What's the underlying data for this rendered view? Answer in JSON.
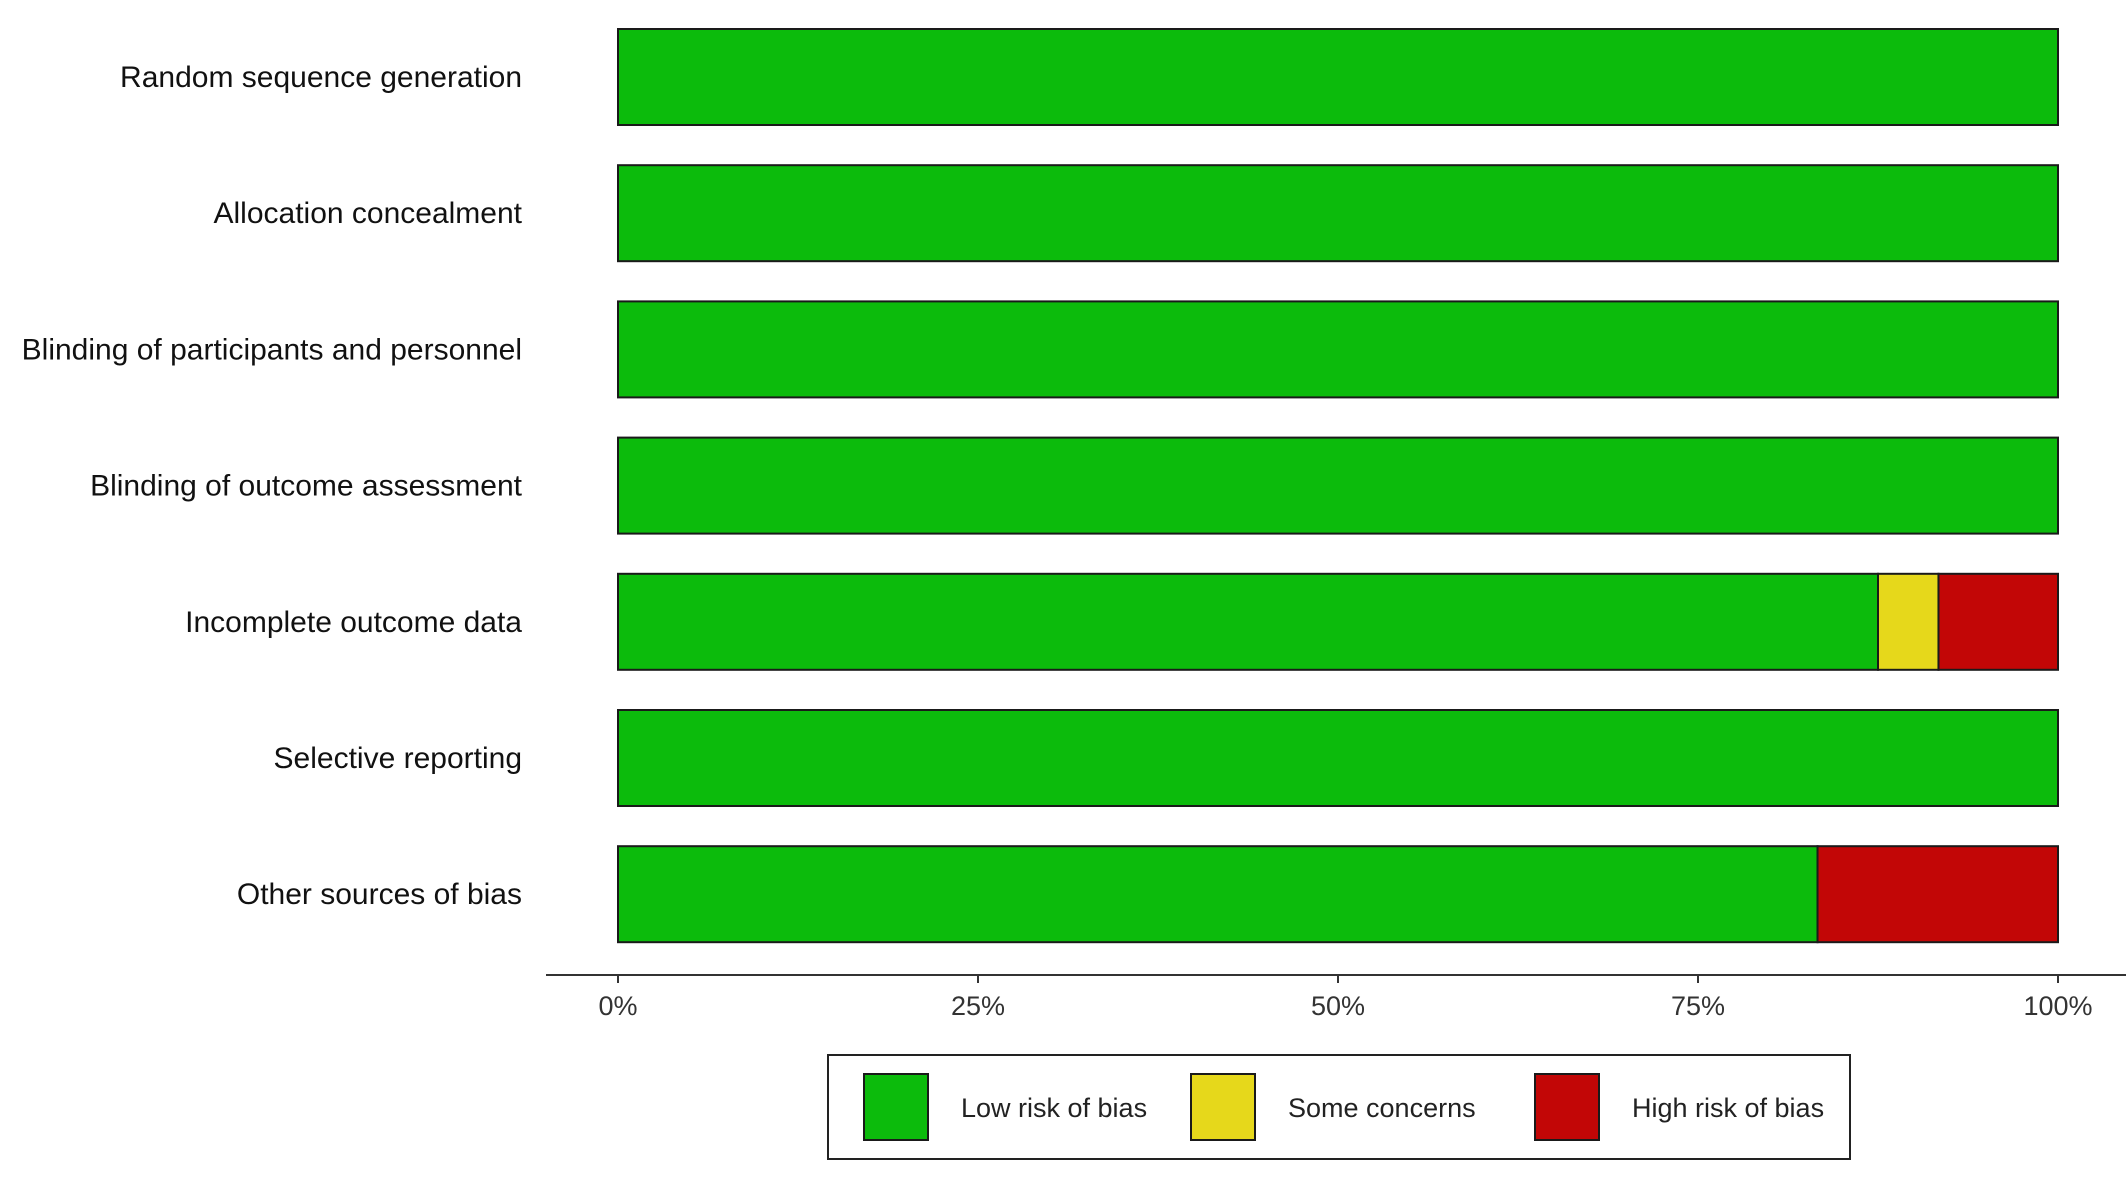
{
  "chart_data": {
    "type": "bar",
    "orientation": "horizontal",
    "stacked": true,
    "categories": [
      "Random sequence generation",
      "Allocation concealment",
      "Blinding of participants and personnel",
      "Blinding of outcome assessment",
      "Incomplete outcome data",
      "Selective reporting",
      "Other sources of bias"
    ],
    "series": [
      {
        "name": "Low risk of bias",
        "color": "#0cbb0c",
        "values": [
          100,
          100,
          100,
          100,
          87.5,
          100,
          83.3
        ]
      },
      {
        "name": "Some concerns",
        "color": "#e6d81b",
        "values": [
          0,
          0,
          0,
          0,
          4.2,
          0,
          0
        ]
      },
      {
        "name": "High risk of bias",
        "color": "#c20606",
        "values": [
          0,
          0,
          0,
          0,
          8.3,
          0,
          16.7
        ]
      }
    ],
    "x_ticks": [
      "0%",
      "25%",
      "50%",
      "75%",
      "100%"
    ],
    "xlim": [
      0,
      100
    ],
    "grid": false,
    "legend_position": "bottom"
  }
}
